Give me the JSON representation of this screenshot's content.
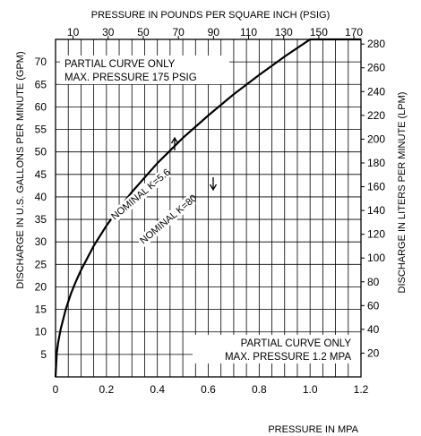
{
  "chart_data": {
    "type": "line",
    "top_axis": {
      "label": "PRESSURE IN POUNDS PER SQUARE INCH (PSIG)",
      "ticks": [
        "10",
        "30",
        "50",
        "70",
        "90",
        "110",
        "130",
        "150",
        "170"
      ],
      "tick_values_psig": [
        10,
        30,
        50,
        70,
        90,
        110,
        130,
        150,
        170
      ]
    },
    "bottom_axis": {
      "label": "PRESSURE IN MPA",
      "ticks": [
        "0",
        "0.2",
        "0.4",
        "0.6",
        "0.8",
        "1.0",
        "1.2"
      ],
      "range": [
        0,
        1.2
      ]
    },
    "left_axis": {
      "label": "DISCHARGE IN U.S. GALLONS PER MINUTE (GPM)",
      "ticks": [
        "5",
        "10",
        "15",
        "20",
        "25",
        "30",
        "35",
        "40",
        "45",
        "50",
        "55",
        "60",
        "65",
        "70"
      ],
      "range": [
        0,
        75
      ]
    },
    "right_axis": {
      "label": "DISCHARGE IN LITERS PER MINUTE (LPM)",
      "ticks": [
        "20",
        "40",
        "60",
        "80",
        "100",
        "120",
        "140",
        "160",
        "180",
        "200",
        "220",
        "240",
        "260",
        "280"
      ],
      "tick_values_lpm": [
        20,
        40,
        60,
        80,
        100,
        120,
        140,
        160,
        180,
        200,
        220,
        240,
        260,
        280
      ]
    },
    "notes": {
      "top": [
        "PARTIAL CURVE ONLY",
        "MAX. PRESSURE 175 PSIG"
      ],
      "bottom": [
        "PARTIAL CURVE ONLY",
        "MAX. PRESSURE 1.2 MPA"
      ]
    },
    "curve_labels": {
      "gpm": "NOMINAL K=5.6",
      "lpm": "NOMINAL K=80"
    },
    "series": [
      {
        "x": [
          0,
          0.005,
          0.01,
          0.02,
          0.04,
          0.06,
          0.08,
          0.1,
          0.15,
          0.2,
          0.25,
          0.3,
          0.4,
          0.5,
          0.6,
          0.7,
          0.8,
          0.9,
          1.0,
          1.1,
          1.2
        ],
        "y": [
          0,
          5.3,
          7.5,
          10.6,
          15.0,
          18.4,
          21.2,
          23.7,
          29.1,
          33.6,
          37.5,
          41.1,
          47.5,
          53.1,
          58.1,
          62.8,
          67.1,
          71.2,
          75.0,
          78.7,
          82.2
        ]
      }
    ],
    "grid": true
  }
}
